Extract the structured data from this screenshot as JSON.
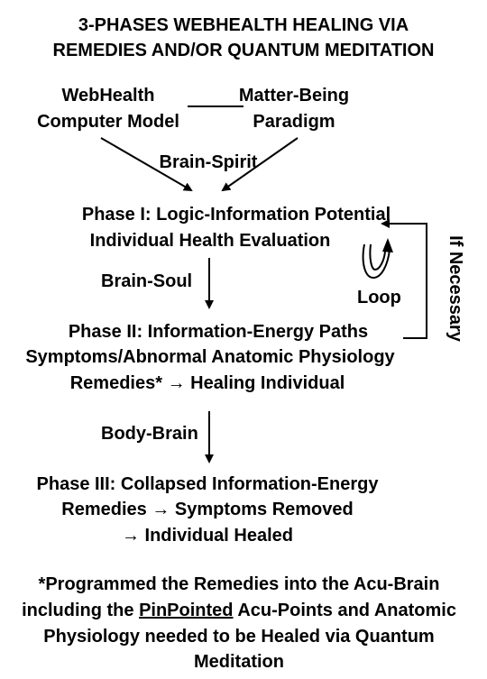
{
  "title": {
    "line1": "3-PHASES WEBHEALTH HEALING VIA",
    "line2": "REMEDIES AND/OR QUANTUM MEDITATION"
  },
  "inputs": {
    "webhealth_line1": "WebHealth",
    "webhealth_line2": "Computer Model",
    "matter_line1": "Matter-Being",
    "matter_line2": "Paradigm",
    "brain_spirit": "Brain-Spirit"
  },
  "phase1": {
    "line1": "Phase I: Logic-Information Potential",
    "line2": "Individual Health Evaluation"
  },
  "brain_soul": "Brain-Soul",
  "loop_label": "Loop",
  "if_necessary": "If Necessary",
  "phase2": {
    "line1": "Phase II: Information-Energy Paths",
    "line2": "Symptoms/Abnormal Anatomic Physiology",
    "line3": "Remedies* → Healing Individual"
  },
  "body_brain": "Body-Brain",
  "phase3": {
    "line1": "Phase III: Collapsed Information-Energy",
    "line2": "Remedies → Symptoms Removed",
    "line3": "→ Individual Healed"
  },
  "footnote": {
    "line1": "*Programmed the Remedies into the Acu-Brain",
    "line2_pre": "including the ",
    "line2_underlined": "PinPointed",
    "line2_post": " Acu-Points and Anatomic",
    "line3": "Physiology needed to be Healed via Quantum",
    "line4": "Meditation"
  }
}
